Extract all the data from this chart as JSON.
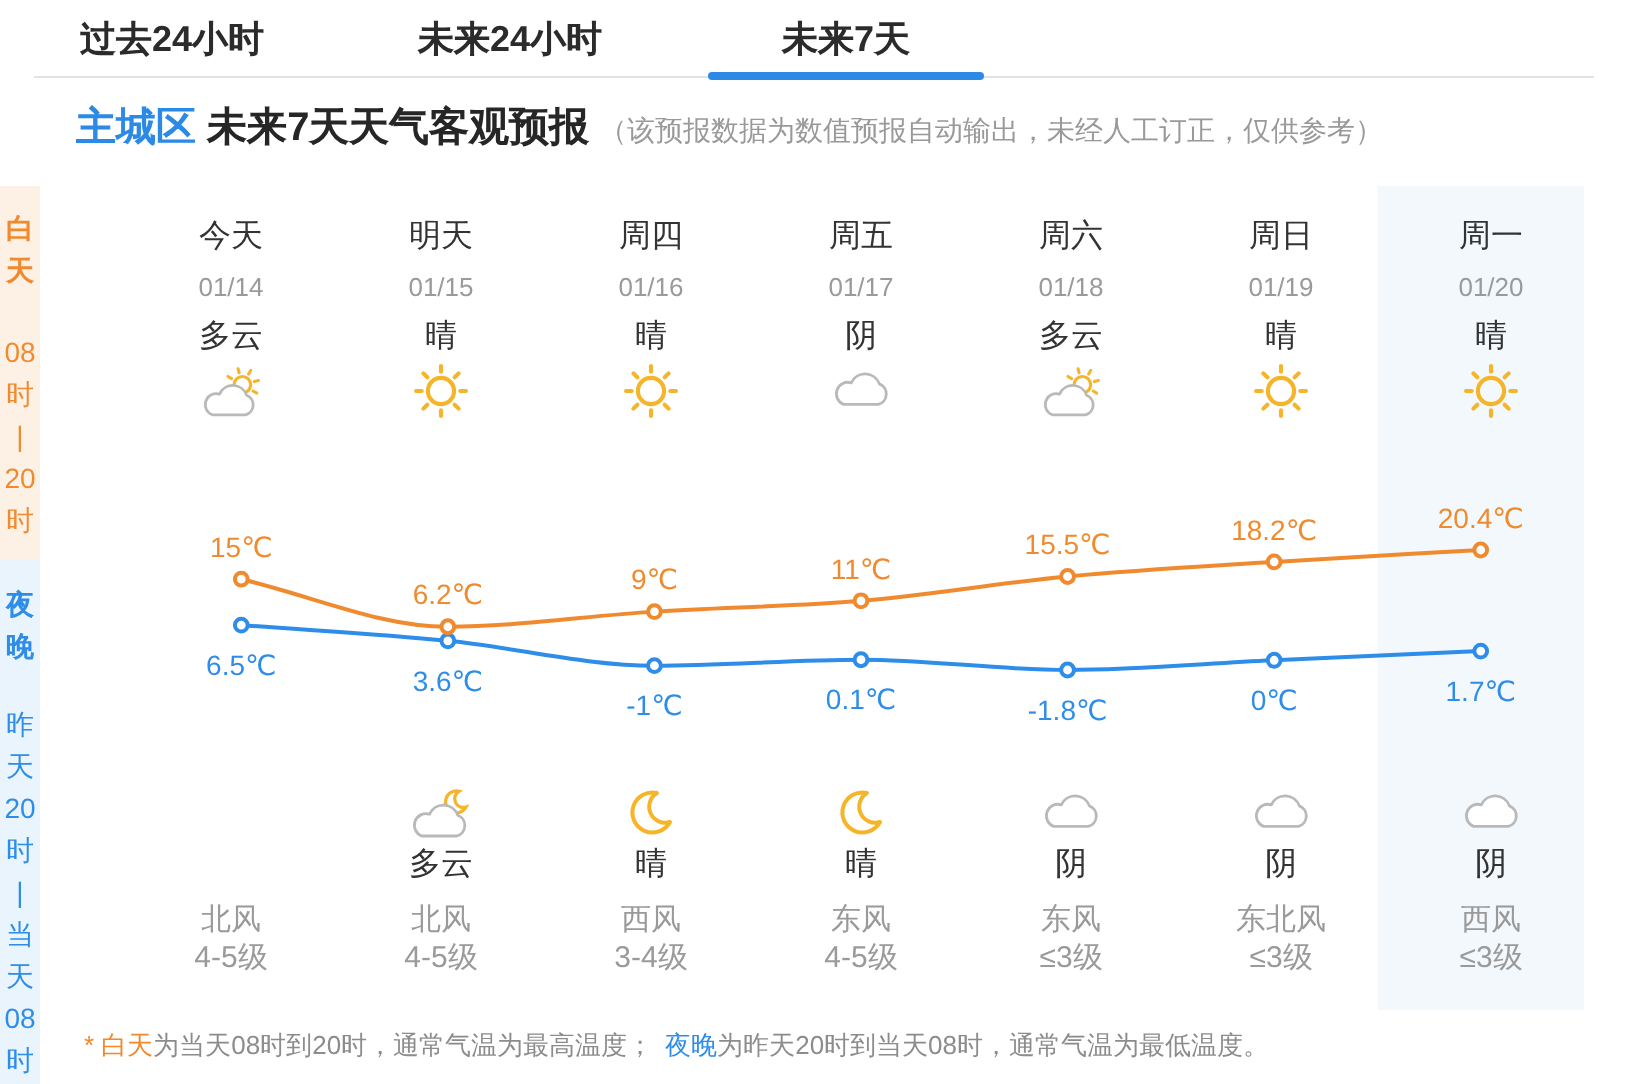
{
  "chart_data": {
    "type": "line",
    "title": "主城区 未来7天天气客观预报",
    "subtitle": "（该预报数据为数值预报自动输出，未经人工订正，仅供参考）",
    "categories": [
      "今天",
      "明天",
      "周四",
      "周五",
      "周六",
      "周日",
      "周一"
    ],
    "series": [
      {
        "color": "#f08a2e",
        "values": [
          15,
          6.2,
          9,
          11,
          15.5,
          18.2,
          20.4
        ],
        "value_labels": [
          "15℃",
          "6.2℃",
          "9℃",
          "11℃",
          "15.5℃",
          "18.2℃",
          "20.4℃"
        ]
      },
      {
        "color": "#2e8de8",
        "values": [
          6.5,
          3.6,
          -1,
          0.1,
          -1.8,
          0,
          1.7
        ],
        "value_labels": [
          "6.5℃",
          "3.6℃",
          "-1℃",
          "0.1℃",
          "-1.8℃",
          "0℃",
          "1.7℃"
        ]
      }
    ],
    "marker": "circle",
    "tick_labels": "x",
    "bands": [
      {
        "axis": "x",
        "from": "周一",
        "to": "周一",
        "color": "#f3f8fd"
      }
    ],
    "annotations": [
      "过去24小时",
      "未来24小时",
      "未来7天",
      "白天",
      "08时|20时",
      "夜晚",
      "昨天20时|当天08时",
      "* 白天",
      "为当天08时到20时，通常气温为最高温度；",
      "夜晚",
      "为昨天20时到当天08时，通常气温为最低温度。",
      "01/14",
      "01/15",
      "01/16",
      "01/17",
      "01/18",
      "01/19",
      "01/20",
      "多云",
      "晴",
      "晴",
      "阴",
      "多云",
      "晴",
      "晴",
      "多云",
      "晴",
      "晴",
      "阴",
      "阴",
      "阴",
      "北风",
      "北风",
      "西风",
      "东风",
      "东风",
      "东北风",
      "西风",
      "4-5级",
      "4-5级",
      "3-4级",
      "4-5级",
      "≤3级",
      "≤3级",
      "≤3级"
    ]
  }
}
